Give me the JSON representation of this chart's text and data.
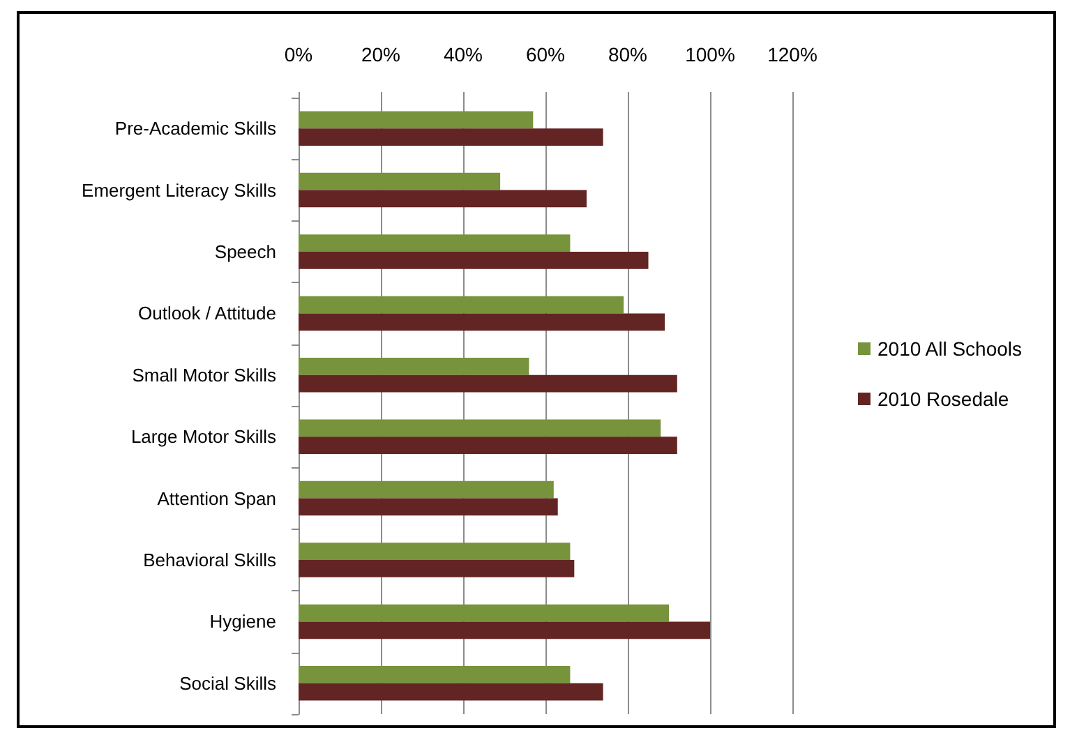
{
  "chart_data": {
    "type": "bar",
    "orientation": "horizontal",
    "categories": [
      "Pre-Academic Skills",
      "Emergent Literacy Skills",
      "Speech",
      "Outlook / Attitude",
      "Small Motor Skills",
      "Large Motor Skills",
      "Attention Span",
      "Behavioral Skills",
      "Hygiene",
      "Social Skills"
    ],
    "series": [
      {
        "name": "2010 All Schools",
        "color": "#77933c",
        "values": [
          57,
          49,
          66,
          79,
          56,
          88,
          62,
          66,
          90,
          66
        ]
      },
      {
        "name": "2010 Rosedale",
        "color": "#632523",
        "values": [
          74,
          70,
          85,
          89,
          92,
          92,
          63,
          67,
          100,
          74
        ]
      }
    ],
    "xlim": [
      0,
      120
    ],
    "xticks": [
      {
        "value": 0,
        "label": "0%"
      },
      {
        "value": 20,
        "label": "20%"
      },
      {
        "value": 40,
        "label": "40%"
      },
      {
        "value": 60,
        "label": "60%"
      },
      {
        "value": 80,
        "label": "80%"
      },
      {
        "value": 100,
        "label": "100%"
      },
      {
        "value": 120,
        "label": "120%"
      }
    ],
    "grid": "x",
    "legend": "right"
  }
}
